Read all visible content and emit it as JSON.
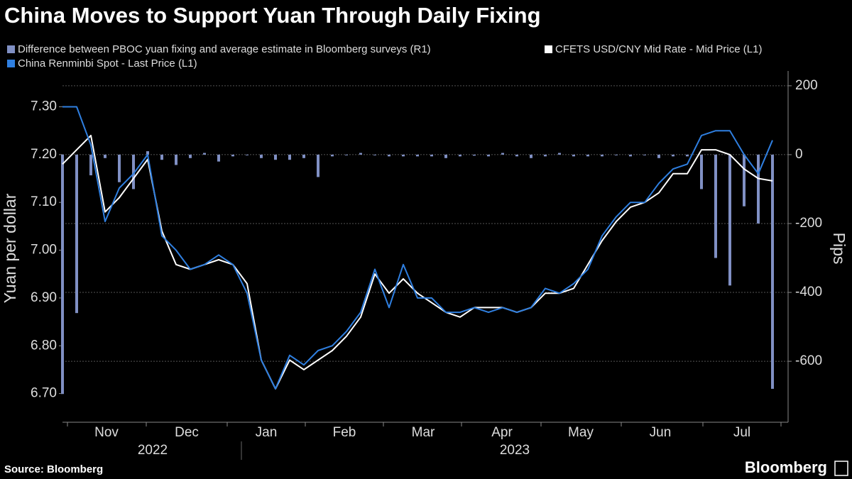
{
  "chart_data": {
    "type": "line",
    "title": "China Moves to Support Yuan Through Daily Fixing",
    "ylabel": "Yuan per dollar",
    "y2label": "Pips",
    "source": "Source: Bloomberg",
    "brand": "Bloomberg",
    "x_month_labels": [
      "Nov",
      "Dec",
      "Jan",
      "Feb",
      "Mar",
      "Apr",
      "May",
      "Jun",
      "Jul"
    ],
    "x_year_labels": [
      "2022",
      "2023"
    ],
    "ylim": [
      6.64,
      7.375
    ],
    "yticks": [
      {
        "value": 6.7,
        "label": "6.70"
      },
      {
        "value": 6.8,
        "label": "6.80"
      },
      {
        "value": 6.9,
        "label": "6.90"
      },
      {
        "value": 7.0,
        "label": "7.00"
      },
      {
        "value": 7.1,
        "label": "7.10"
      },
      {
        "value": 7.2,
        "label": "7.20"
      },
      {
        "value": 7.3,
        "label": "7.30"
      }
    ],
    "y2lim": [
      -777,
      243
    ],
    "y2ticks": [
      -600,
      -400,
      -200,
      0,
      200
    ],
    "grid": true,
    "series": [
      {
        "name": "Difference between PBOC yuan fixing and average estimate in Bloomberg surveys (R1)",
        "type": "bar",
        "axis": "y2",
        "color": "#8090c4",
        "values": [
          -695,
          -460,
          -60,
          -10,
          -80,
          -100,
          10,
          -15,
          -30,
          -10,
          5,
          -20,
          -5,
          0,
          -10,
          -15,
          -15,
          -10,
          -65,
          -5,
          0,
          5,
          0,
          -5,
          -5,
          -5,
          -5,
          -10,
          -5,
          -3,
          -5,
          5,
          -5,
          -10,
          -5,
          5,
          -5,
          -5,
          -5,
          0,
          -5,
          0,
          -10,
          -5,
          -5,
          -100,
          -300,
          -380,
          -150,
          -200,
          -680
        ]
      },
      {
        "name": "CFETS USD/CNY Mid Rate - Mid Price (L1)",
        "type": "line",
        "color": "#ffffff",
        "values": [
          7.18,
          7.21,
          7.24,
          7.08,
          7.11,
          7.15,
          7.19,
          7.04,
          6.97,
          6.96,
          6.97,
          6.98,
          6.97,
          6.93,
          6.77,
          6.71,
          6.77,
          6.75,
          6.77,
          6.79,
          6.82,
          6.86,
          6.95,
          6.91,
          6.94,
          6.91,
          6.89,
          6.87,
          6.86,
          6.88,
          6.88,
          6.88,
          6.87,
          6.88,
          6.91,
          6.91,
          6.92,
          6.97,
          7.02,
          7.06,
          7.09,
          7.1,
          7.12,
          7.16,
          7.16,
          7.21,
          7.21,
          7.2,
          7.17,
          7.15,
          7.145
        ]
      },
      {
        "name": "China Renminbi Spot - Last Price (L1)",
        "type": "line",
        "color": "#2f7fe0",
        "values": [
          7.3,
          7.3,
          7.22,
          7.06,
          7.13,
          7.16,
          7.2,
          7.03,
          7.0,
          6.96,
          6.97,
          6.99,
          6.97,
          6.91,
          6.77,
          6.71,
          6.78,
          6.76,
          6.79,
          6.8,
          6.83,
          6.87,
          6.96,
          6.88,
          6.97,
          6.9,
          6.9,
          6.87,
          6.87,
          6.88,
          6.87,
          6.88,
          6.87,
          6.88,
          6.92,
          6.91,
          6.93,
          6.96,
          7.03,
          7.07,
          7.1,
          7.1,
          7.14,
          7.17,
          7.18,
          7.24,
          7.25,
          7.25,
          7.2,
          7.16,
          7.23
        ]
      }
    ]
  }
}
